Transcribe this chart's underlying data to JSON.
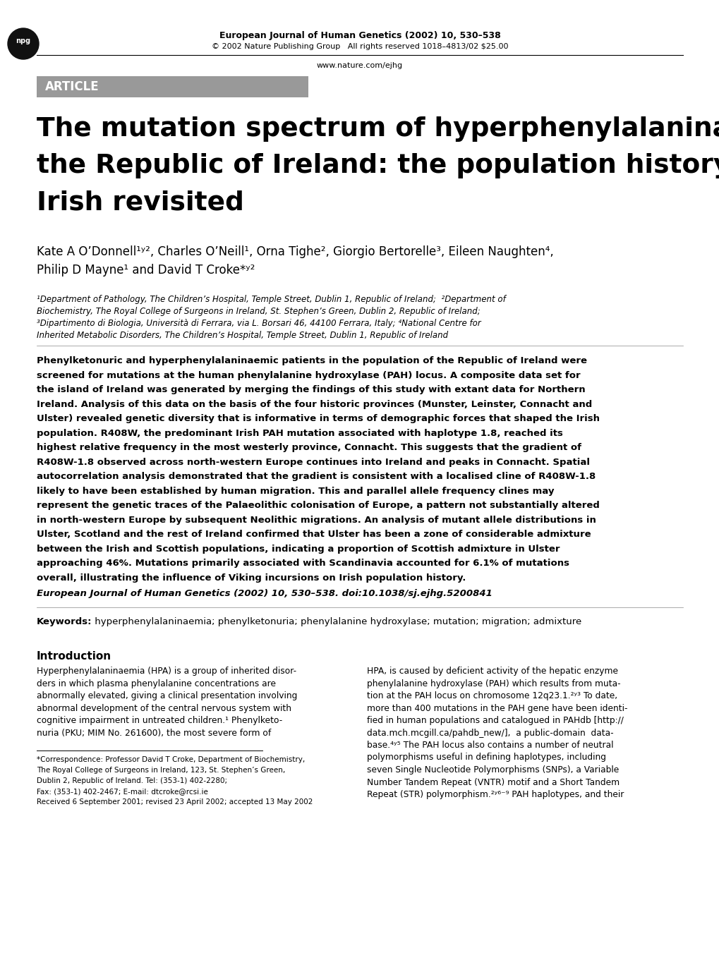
{
  "header_journal": "European Journal of Human Genetics (2002) 10, 530–538",
  "header_copyright": "© 2002 Nature Publishing Group   All rights reserved 1018–4813/02 $25.00",
  "header_url": "www.nature.com/ejhg",
  "article_label": "ARTICLE",
  "title_line1": "The mutation spectrum of hyperphenylalaninaemia in",
  "title_line2": "the Republic of Ireland: the population history of the",
  "title_line3": "Irish revisited",
  "authors_line1": "Kate A O’Donnell¹ʸ², Charles O’Neill¹, Orna Tighe², Giorgio Bertorelle³, Eileen Naughten⁴,",
  "authors_line2": "Philip D Mayne¹ and David T Croke*ʸ²",
  "affil1": "¹Department of Pathology, The Children’s Hospital, Temple Street, Dublin 1, Republic of Ireland;  ²Department of",
  "affil2": "Biochemistry, The Royal College of Surgeons in Ireland, St. Stephen’s Green, Dublin 2, Republic of Ireland;",
  "affil3": "³Dipartimento di Biologia, Università di Ferrara, via L. Borsari 46, 44100 Ferrara, Italy; ⁴National Centre for",
  "affil4": "Inherited Metabolic Disorders, The Children’s Hospital, Temple Street, Dublin 1, Republic of Ireland",
  "abstract_lines": [
    "Phenylketonuric and hyperphenylalaninaemic patients in the population of the Republic of Ireland were",
    "screened for mutations at the human phenylalanine hydroxylase (PAH) locus. A composite data set for",
    "the island of Ireland was generated by merging the findings of this study with extant data for Northern",
    "Ireland. Analysis of this data on the basis of the four historic provinces (Munster, Leinster, Connacht and",
    "Ulster) revealed genetic diversity that is informative in terms of demographic forces that shaped the Irish",
    "population. R408W, the predominant Irish PAH mutation associated with haplotype 1.8, reached its",
    "highest relative frequency in the most westerly province, Connacht. This suggests that the gradient of",
    "R408W-1.8 observed across north-western Europe continues into Ireland and peaks in Connacht. Spatial",
    "autocorrelation analysis demonstrated that the gradient is consistent with a localised cline of R408W-1.8",
    "likely to have been established by human migration. This and parallel allele frequency clines may",
    "represent the genetic traces of the Palaeolithic colonisation of Europe, a pattern not substantially altered",
    "in north-western Europe by subsequent Neolithic migrations. An analysis of mutant allele distributions in",
    "Ulster, Scotland and the rest of Ireland confirmed that Ulster has been a zone of considerable admixture",
    "between the Irish and Scottish populations, indicating a proportion of Scottish admixture in Ulster",
    "approaching 46%. Mutations primarily associated with Scandinavia accounted for 6.1% of mutations",
    "overall, illustrating the influence of Viking incursions on Irish population history."
  ],
  "abstract_citation": "European Journal of Human Genetics (2002) 10, 530–538. doi:10.1038/sj.ejhg.5200841",
  "keywords_label": "Keywords:",
  "keywords": " hyperphenylalaninaemia; phenylketonuria; phenylalanine hydroxylase; mutation; migration; admixture",
  "intro_heading": "Introduction",
  "intro_col1_lines": [
    "Hyperphenylalaninaemia (HPA) is a group of inherited disor-",
    "ders in which plasma phenylalanine concentrations are",
    "abnormally elevated, giving a clinical presentation involving",
    "abnormal development of the central nervous system with",
    "cognitive impairment in untreated children.¹ Phenylketo-",
    "nuria (PKU; MIM No. 261600), the most severe form of"
  ],
  "intro_col2_lines": [
    "HPA, is caused by deficient activity of the hepatic enzyme",
    "phenylalanine hydroxylase (PAH) which results from muta-",
    "tion at the PAH locus on chromosome 12q23.1.²ʸ³ To date,",
    "more than 400 mutations in the PAH gene have been identi-",
    "fied in human populations and catalogued in PAHdb [http://",
    "data.mch.mcgill.ca/pahdb_new/],  a public-domain  data-",
    "base.⁴ʸ⁵ The PAH locus also contains a number of neutral",
    "polymorphisms useful in defining haplotypes, including",
    "seven Single Nucleotide Polymorphisms (SNPs), a Variable",
    "Number Tandem Repeat (VNTR) motif and a Short Tandem",
    "Repeat (STR) polymorphism.²ʸ⁶⁻⁹ PAH haplotypes, and their"
  ],
  "footnote_lines": [
    "*Correspondence: Professor David T Croke, Department of Biochemistry,",
    "The Royal College of Surgeons in Ireland, 123, St. Stephen’s Green,",
    "Dublin 2, Republic of Ireland. Tel: (353-1) 402-2280;",
    "Fax: (353-1) 402-2467; E-mail: dtcroke@rcsi.ie",
    "Received 6 September 2001; revised 23 April 2002; accepted 13 May 2002"
  ],
  "bg_color": "#ffffff",
  "article_box_color": "#999999",
  "article_text_color": "#ffffff",
  "text_color": "#000000"
}
